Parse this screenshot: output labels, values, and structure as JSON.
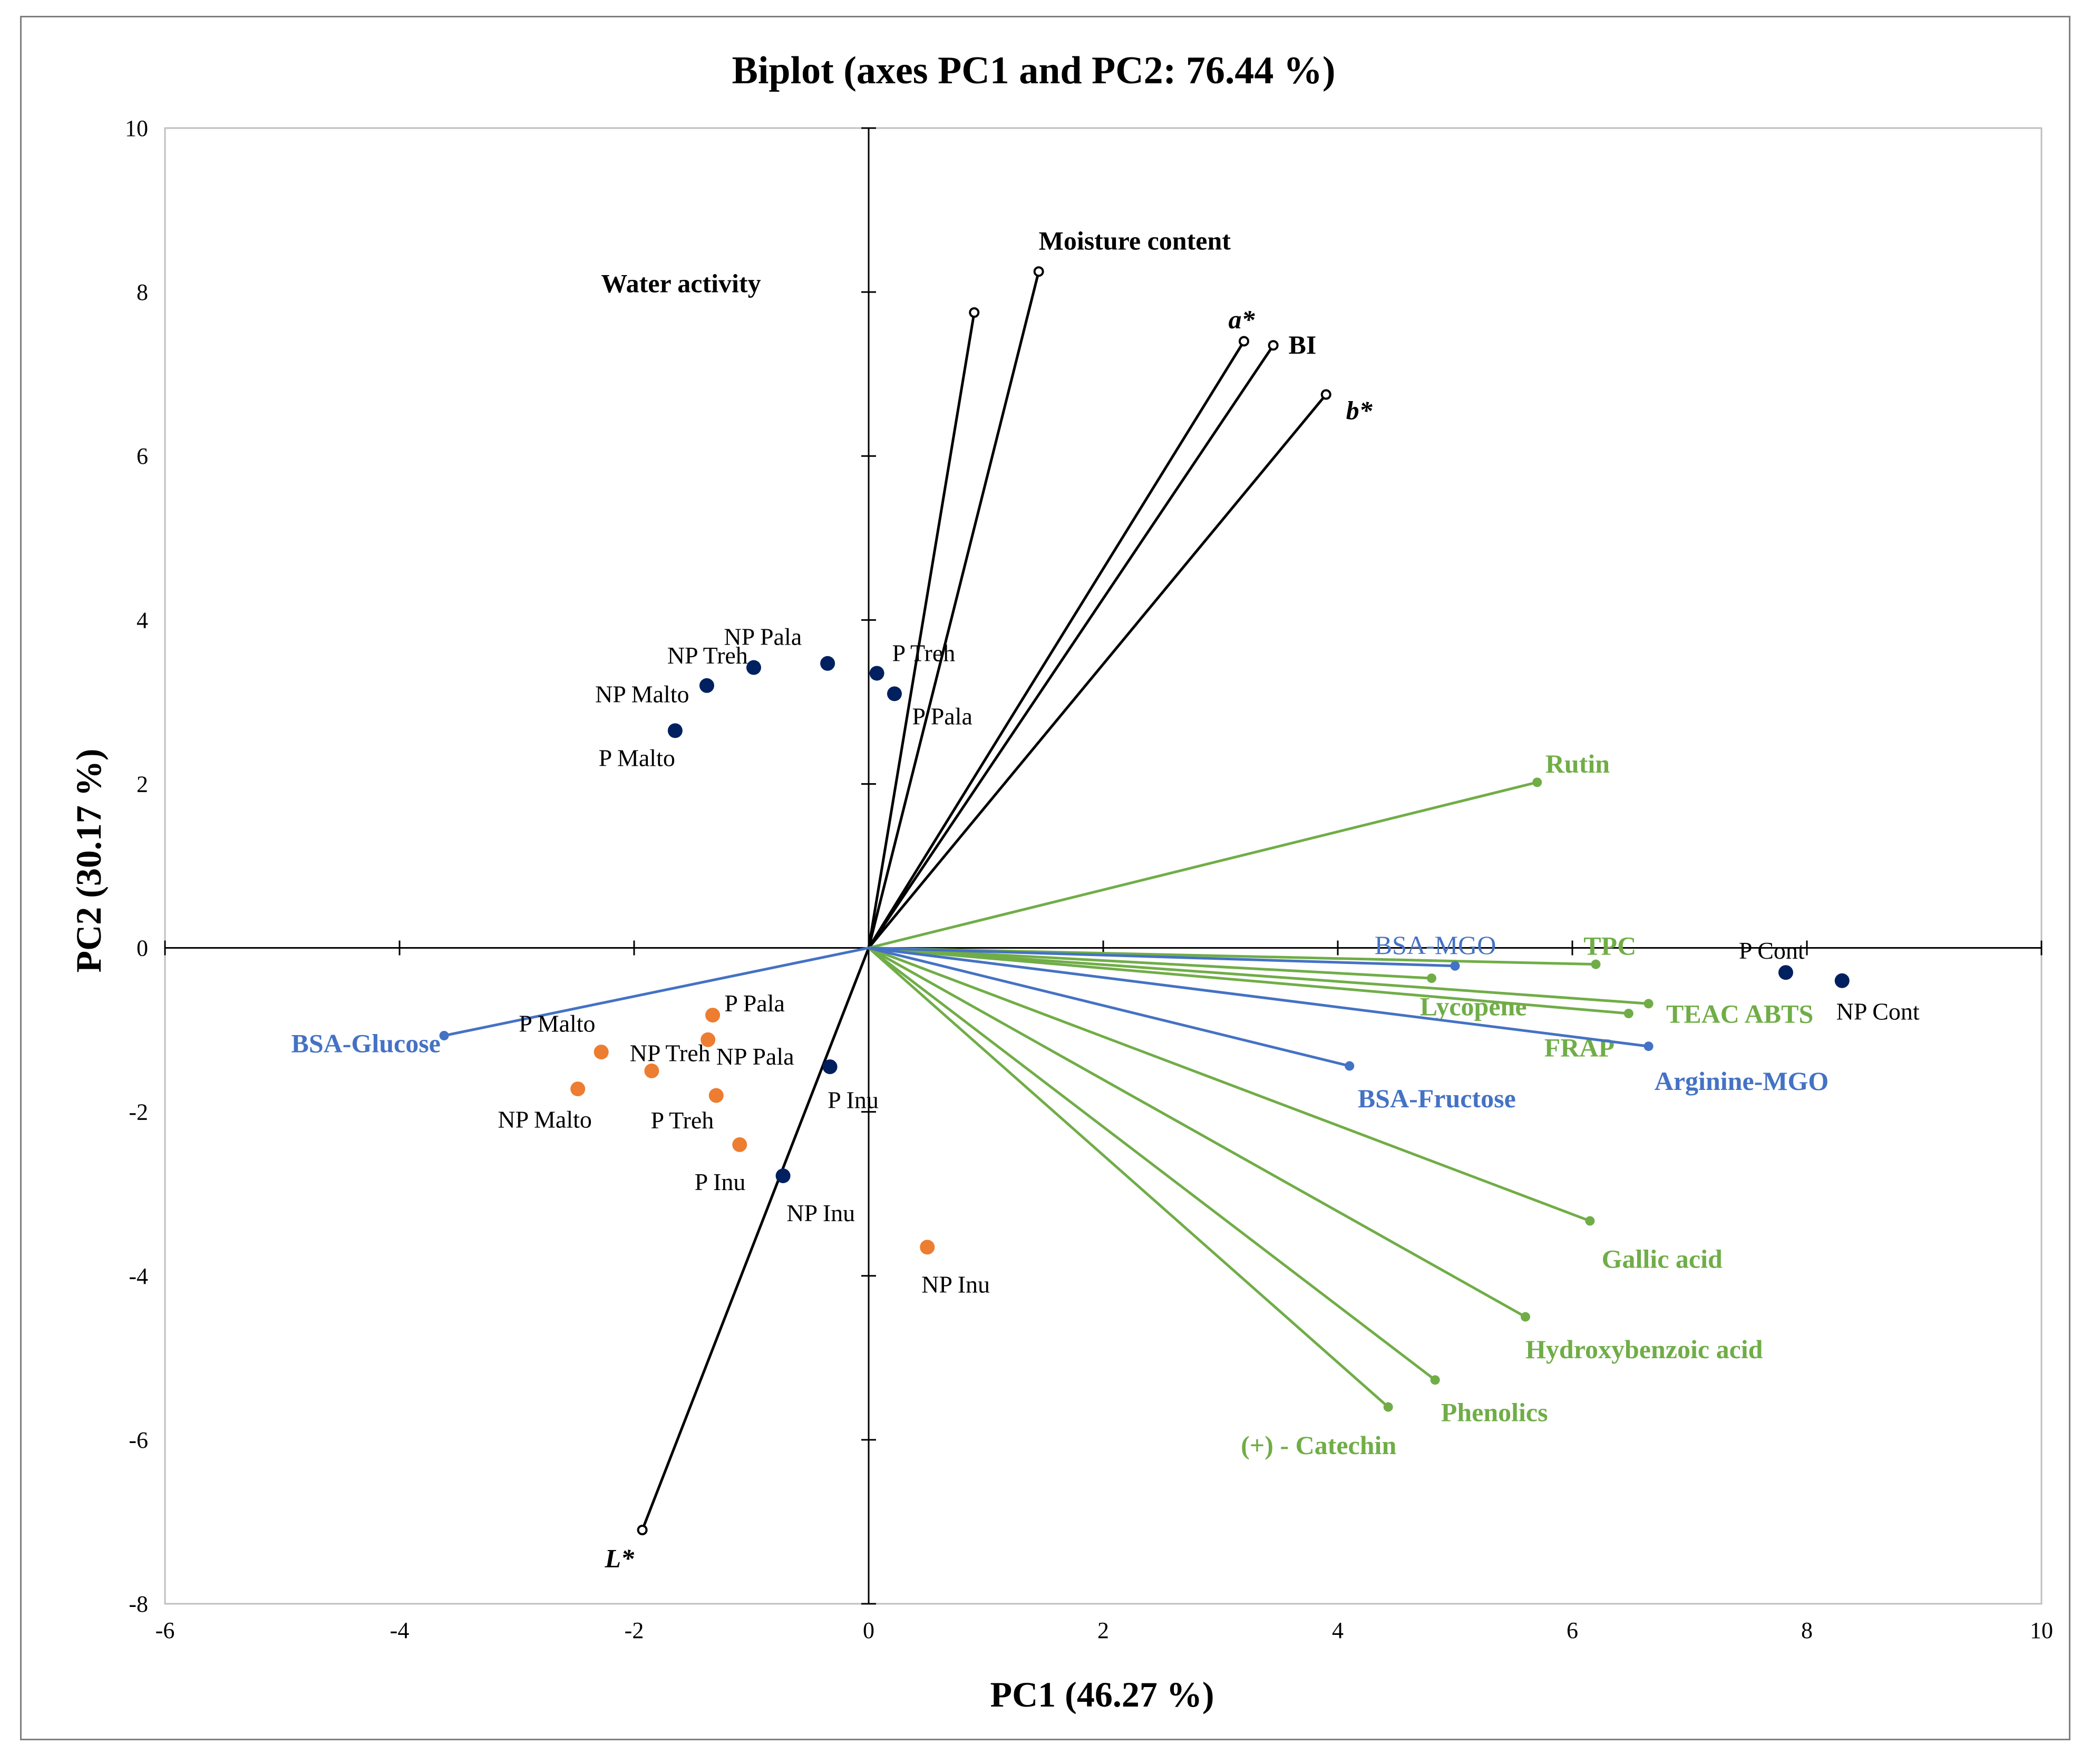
{
  "chart_data": {
    "type": "scatter",
    "title": "Biplot (axes PC1 and PC2: 76.44 %)",
    "xlabel": "PC1 (46.27 %)",
    "ylabel": "PC2 (30.17 %)",
    "xlim": [
      -6,
      10
    ],
    "ylim": [
      -8,
      10
    ],
    "xticks": [
      -6,
      -4,
      -2,
      0,
      2,
      4,
      6,
      8,
      10
    ],
    "yticks": [
      -8,
      -6,
      -4,
      -2,
      0,
      2,
      4,
      6,
      8,
      10
    ],
    "xtick_labels": [
      "-6",
      "-4",
      "-2",
      "0",
      "2",
      "4",
      "6",
      "8",
      "10"
    ],
    "ytick_labels": [
      "-8",
      "-6",
      "-4",
      "-2",
      "0",
      "2",
      "4",
      "6",
      "8",
      "10"
    ],
    "grid": false,
    "colors": {
      "black": "#000000",
      "green": "#70ad47",
      "blue": "#4472c4",
      "navy": "#002060",
      "orange": "#ed7d31"
    },
    "vectors": [
      {
        "name": "Water activity",
        "x": 0.9,
        "y": 7.75,
        "color": "black",
        "bold": true,
        "italic": false,
        "anchor": "middle",
        "dx": -2.5,
        "dy": 0.35
      },
      {
        "name": "Moisture content",
        "x": 1.45,
        "y": 8.25,
        "color": "black",
        "bold": true,
        "italic": false,
        "anchor": "start",
        "dx": 0.0,
        "dy": 0.37
      },
      {
        "name": "a*",
        "x": 3.2,
        "y": 7.4,
        "color": "black",
        "bold": true,
        "italic": true,
        "anchor": "middle",
        "dx": -0.02,
        "dy": 0.26
      },
      {
        "name": "BI",
        "x": 3.45,
        "y": 7.35,
        "color": "black",
        "bold": true,
        "italic": false,
        "anchor": "start",
        "dx": 0.13,
        "dy": 0.0
      },
      {
        "name": "b*",
        "x": 3.9,
        "y": 6.75,
        "color": "black",
        "bold": true,
        "italic": true,
        "anchor": "start",
        "dx": 0.17,
        "dy": -0.2
      },
      {
        "name": "L*",
        "x": -1.93,
        "y": -7.1,
        "color": "black",
        "bold": true,
        "italic": true,
        "anchor": "end",
        "dx": -0.07,
        "dy": -0.35
      },
      {
        "name": "Rutin",
        "x": 5.7,
        "y": 2.02,
        "color": "green",
        "bold": true,
        "italic": false,
        "anchor": "start",
        "dx": 0.07,
        "dy": 0.22
      },
      {
        "name": "TPC",
        "x": 6.2,
        "y": -0.2,
        "color": "green",
        "bold": true,
        "italic": false,
        "anchor": "middle",
        "dx": 0.12,
        "dy": 0.22
      },
      {
        "name": "Lycopene",
        "x": 4.8,
        "y": -0.37,
        "color": "green",
        "bold": true,
        "italic": false,
        "anchor": "start",
        "dx": -0.1,
        "dy": -0.35
      },
      {
        "name": "TEAC ABTS",
        "x": 6.65,
        "y": -0.68,
        "color": "green",
        "bold": true,
        "italic": false,
        "anchor": "start",
        "dx": 0.15,
        "dy": -0.13
      },
      {
        "name": "FRAP",
        "x": 6.48,
        "y": -0.8,
        "color": "green",
        "bold": true,
        "italic": false,
        "anchor": "end",
        "dx": -0.12,
        "dy": -0.42
      },
      {
        "name": "Gallic acid",
        "x": 6.15,
        "y": -3.33,
        "color": "green",
        "bold": true,
        "italic": false,
        "anchor": "start",
        "dx": 0.1,
        "dy": -0.47
      },
      {
        "name": "Hydroxybenzoic acid",
        "x": 5.6,
        "y": -4.5,
        "color": "green",
        "bold": true,
        "italic": false,
        "anchor": "start",
        "dx": 0.0,
        "dy": -0.4
      },
      {
        "name": "Phenolics",
        "x": 4.83,
        "y": -5.27,
        "color": "green",
        "bold": true,
        "italic": false,
        "anchor": "start",
        "dx": 0.05,
        "dy": -0.4
      },
      {
        "name": "(+) - Catechin",
        "x": 4.43,
        "y": -5.6,
        "color": "green",
        "bold": true,
        "italic": false,
        "anchor": "end",
        "dx": 0.07,
        "dy": -0.47
      },
      {
        "name": "BSA-MGO",
        "x": 5.0,
        "y": -0.22,
        "color": "blue",
        "bold": false,
        "italic": false,
        "anchor": "end",
        "dx": 0.35,
        "dy": 0.25
      },
      {
        "name": "BSA-Fructose",
        "x": 4.1,
        "y": -1.44,
        "color": "blue",
        "bold": true,
        "italic": false,
        "anchor": "start",
        "dx": 0.07,
        "dy": -0.4
      },
      {
        "name": "Arginine-MGO",
        "x": 6.65,
        "y": -1.2,
        "color": "blue",
        "bold": true,
        "italic": false,
        "anchor": "start",
        "dx": 0.05,
        "dy": -0.43
      },
      {
        "name": "BSA-Glucose",
        "x": -3.62,
        "y": -1.07,
        "color": "blue",
        "bold": true,
        "italic": false,
        "anchor": "end",
        "dx": -0.03,
        "dy": -0.1
      }
    ],
    "series": [
      {
        "name": "Observations (dark)",
        "color": "navy",
        "points": [
          {
            "label": "NP Pala",
            "x": -0.35,
            "y": 3.47,
            "anchor": "end",
            "dx": -0.22,
            "dy": 0.33
          },
          {
            "label": "NP Treh",
            "x": -0.98,
            "y": 3.42,
            "anchor": "end",
            "dx": -0.05,
            "dy": 0.15
          },
          {
            "label": "NP Malto",
            "x": -1.38,
            "y": 3.2,
            "anchor": "end",
            "dx": -0.15,
            "dy": -0.1
          },
          {
            "label": "P Malto",
            "x": -1.65,
            "y": 2.65,
            "anchor": "end",
            "dx": 0.0,
            "dy": -0.33
          },
          {
            "label": "P Treh",
            "x": 0.07,
            "y": 3.35,
            "anchor": "start",
            "dx": 0.13,
            "dy": 0.25
          },
          {
            "label": "P Pala",
            "x": 0.22,
            "y": 3.1,
            "anchor": "start",
            "dx": 0.15,
            "dy": -0.27
          },
          {
            "label": "P Cont",
            "x": 7.82,
            "y": -0.3,
            "anchor": "middle",
            "dx": -0.12,
            "dy": 0.27
          },
          {
            "label": "NP Cont",
            "x": 8.3,
            "y": -0.4,
            "anchor": "start",
            "dx": -0.05,
            "dy": -0.37
          },
          {
            "label": "P Inu",
            "x": -0.33,
            "y": -1.45,
            "anchor": "start",
            "dx": -0.02,
            "dy": -0.4
          },
          {
            "label": "NP Inu",
            "x": -0.73,
            "y": -2.78,
            "anchor": "start",
            "dx": 0.03,
            "dy": -0.45
          }
        ]
      },
      {
        "name": "Observations (orange)",
        "color": "orange",
        "points": [
          {
            "label": "P Pala",
            "x": -1.33,
            "y": -0.82,
            "anchor": "start",
            "dx": 0.1,
            "dy": 0.15
          },
          {
            "label": "P Malto",
            "x": -2.28,
            "y": -1.27,
            "anchor": "end",
            "dx": -0.05,
            "dy": 0.35
          },
          {
            "label": "NP Treh",
            "x": -1.85,
            "y": -1.5,
            "anchor": "end",
            "dx": 0.5,
            "dy": 0.22
          },
          {
            "label": "NP Pala",
            "x": -1.37,
            "y": -1.12,
            "anchor": "start",
            "dx": 0.07,
            "dy": -0.2
          },
          {
            "label": "NP Malto",
            "x": -2.48,
            "y": -1.72,
            "anchor": "end",
            "dx": 0.12,
            "dy": -0.37
          },
          {
            "label": "P Treh",
            "x": -1.3,
            "y": -1.8,
            "anchor": "end",
            "dx": -0.02,
            "dy": -0.3
          },
          {
            "label": "P Inu",
            "x": -1.1,
            "y": -2.4,
            "anchor": "end",
            "dx": 0.05,
            "dy": -0.45
          },
          {
            "label": "NP Inu",
            "x": 0.5,
            "y": -3.65,
            "anchor": "start",
            "dx": -0.05,
            "dy": -0.45
          }
        ]
      }
    ]
  }
}
